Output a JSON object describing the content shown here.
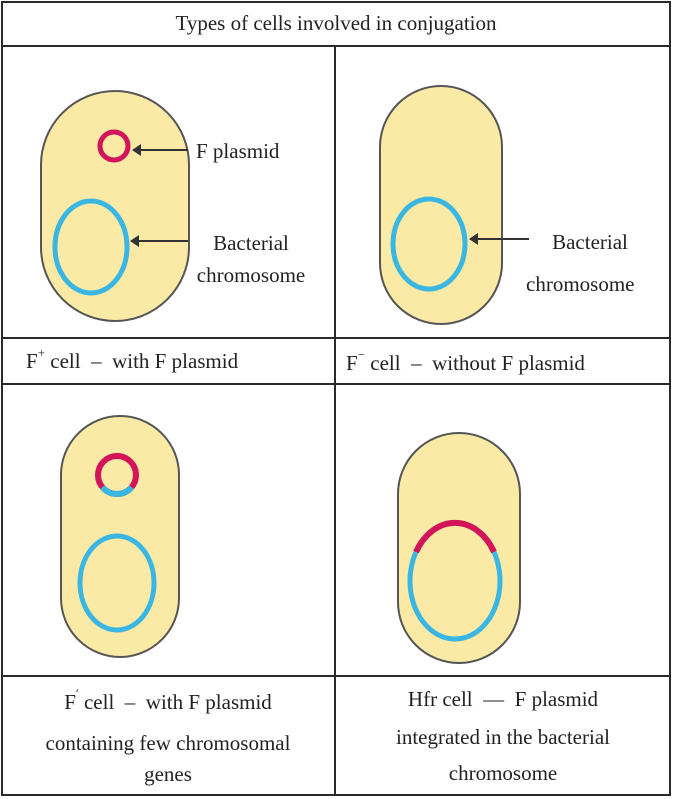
{
  "title": "Types of cells involved in conjugation",
  "labels": {
    "f_plasmid": "F plasmid",
    "bacterial": "Bacterial",
    "chromosome": "chromosome"
  },
  "cells": {
    "f_plus": {
      "sym": "F",
      "sup": "+",
      "rest": " cell  –  with F plasmid"
    },
    "f_minus": {
      "sym": "F",
      "sup": "−",
      "rest": " cell  –  without F plasmid"
    },
    "f_prime": {
      "sym": "F",
      "sup": "′",
      "line1_rest": " cell  –  with F plasmid",
      "line2": "containing few chromosomal",
      "line3": "genes"
    },
    "hfr": {
      "line1": "Hfr cell  —  F plasmid",
      "line2": "integrated in the bacterial",
      "line3": "chromosome"
    }
  },
  "colors": {
    "plasmid": "#d4145a",
    "chromosome": "#3ab6e3",
    "cell_fill": "#fbe9a6"
  }
}
